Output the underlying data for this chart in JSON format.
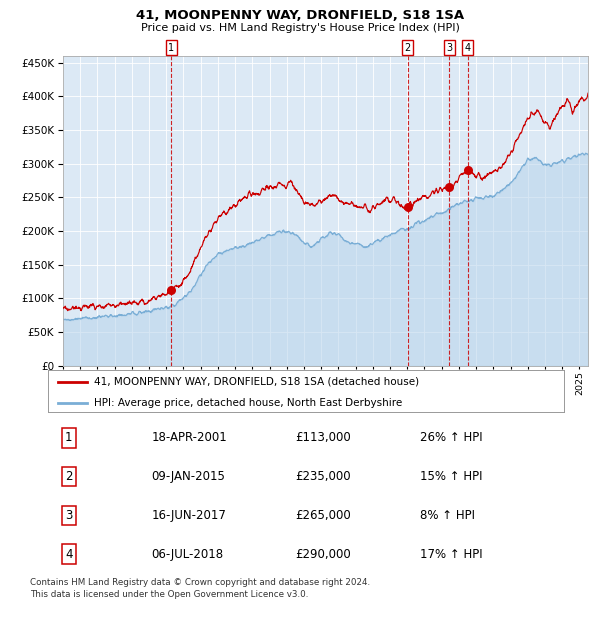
{
  "title": "41, MOONPENNY WAY, DRONFIELD, S18 1SA",
  "subtitle": "Price paid vs. HM Land Registry's House Price Index (HPI)",
  "fig_bg": "#ffffff",
  "plot_bg": "#dce9f5",
  "red_line_color": "#cc0000",
  "blue_line_color": "#7aaed6",
  "blue_fill_color": "#b8d4eb",
  "ylim": [
    0,
    460000
  ],
  "yticks": [
    0,
    50000,
    100000,
    150000,
    200000,
    250000,
    300000,
    350000,
    400000,
    450000
  ],
  "xlim_start": 1995.0,
  "xlim_end": 2025.5,
  "sales": [
    {
      "num": 1,
      "date": "18-APR-2001",
      "year": 2001.29,
      "price": 113000,
      "pct": "26%",
      "dir": "↑"
    },
    {
      "num": 2,
      "date": "09-JAN-2015",
      "year": 2015.03,
      "price": 235000,
      "pct": "15%",
      "dir": "↑"
    },
    {
      "num": 3,
      "date": "16-JUN-2017",
      "year": 2017.45,
      "price": 265000,
      "pct": "8%",
      "dir": "↑"
    },
    {
      "num": 4,
      "date": "06-JUL-2018",
      "year": 2018.51,
      "price": 290000,
      "pct": "17%",
      "dir": "↑"
    }
  ],
  "legend_red": "41, MOONPENNY WAY, DRONFIELD, S18 1SA (detached house)",
  "legend_blue": "HPI: Average price, detached house, North East Derbyshire",
  "footer": "Contains HM Land Registry data © Crown copyright and database right 2024.\nThis data is licensed under the Open Government Licence v3.0.",
  "grid_color": "#ffffff",
  "spine_color": "#aaaaaa"
}
